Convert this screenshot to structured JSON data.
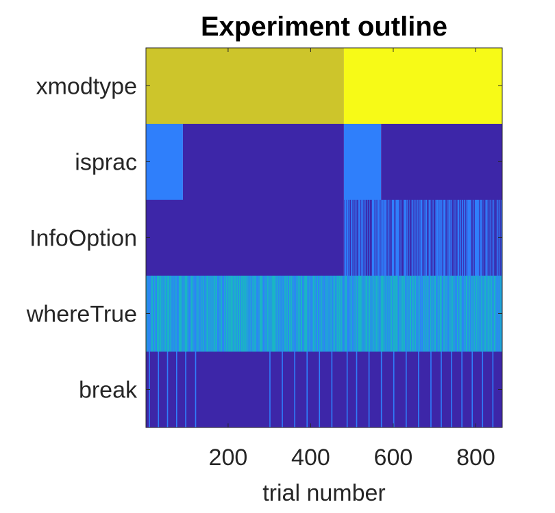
{
  "chart_data": {
    "type": "heatmap",
    "title": "Experiment outline",
    "xlabel": "trial number",
    "ylabel": "",
    "xlim": [
      1,
      864
    ],
    "x_ticks": [
      200,
      400,
      600,
      800
    ],
    "x_tick_labels": [
      "200",
      "400",
      "600",
      "800"
    ],
    "rows": [
      "xmodtype",
      "isprac",
      "InfoOption",
      "whereTrue",
      "break"
    ],
    "colormap": "parula",
    "colors": {
      "low": "#3d26a8",
      "mid_blue": "#2f7ffb",
      "cyan": "#1ab5c4",
      "olive": "#cdc52b",
      "high": "#f7fa17"
    },
    "segments": {
      "xmodtype": [
        {
          "from": 1,
          "to": 480,
          "level": "olive"
        },
        {
          "from": 481,
          "to": 864,
          "level": "high"
        }
      ],
      "isprac": [
        {
          "from": 1,
          "to": 90,
          "level": "mid_blue"
        },
        {
          "from": 91,
          "to": 480,
          "level": "low"
        },
        {
          "from": 481,
          "to": 570,
          "level": "mid_blue"
        },
        {
          "from": 571,
          "to": 864,
          "level": "low"
        }
      ],
      "InfoOption": [
        {
          "from": 1,
          "to": 480,
          "level": "low"
        },
        {
          "from": 481,
          "to": 864,
          "level": "alternating_low_mid_blue"
        }
      ],
      "whereTrue": [
        {
          "from": 1,
          "to": 864,
          "level": "alternating_cyan_mid_blue"
        }
      ],
      "break": [
        {
          "from": 1,
          "to": 864,
          "level": "low"
        }
      ]
    },
    "break_trials": [
      8,
      30,
      52,
      74,
      96,
      120,
      300,
      330,
      360,
      390,
      420,
      450,
      487,
      510,
      540,
      570,
      600,
      630,
      660,
      690,
      715,
      740,
      765,
      790,
      815,
      840
    ]
  }
}
